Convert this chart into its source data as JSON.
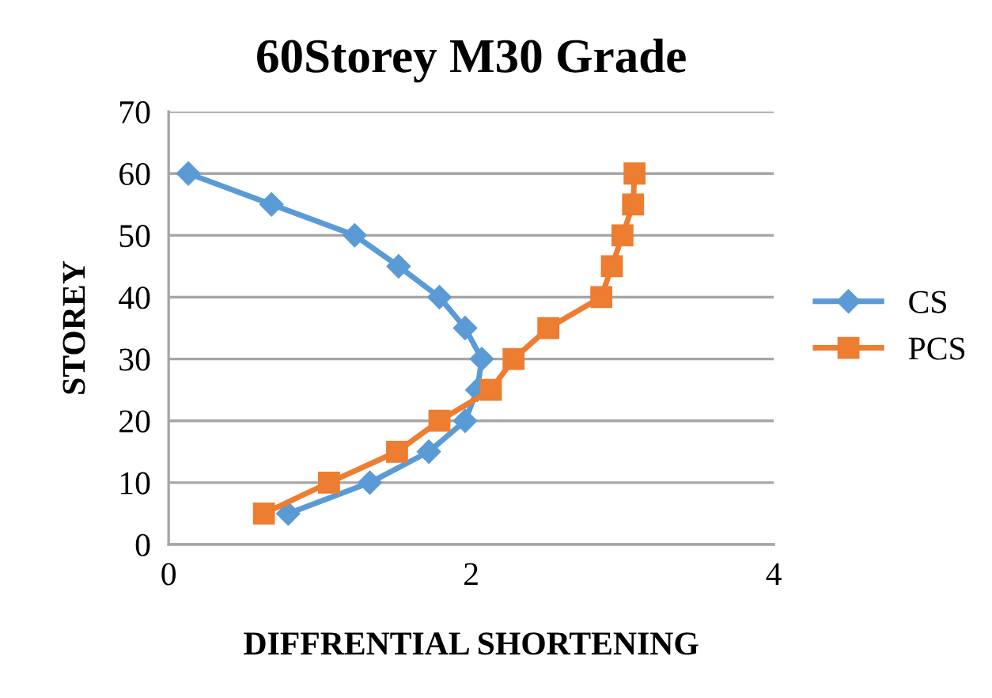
{
  "chart_data": {
    "type": "line",
    "title": "60Storey M30 Grade",
    "xlabel": "DIFFRENTIAL SHORTENING",
    "ylabel": "STOREY",
    "xlim": [
      0,
      4
    ],
    "xticks": [
      0,
      2,
      4
    ],
    "ylim": [
      0,
      70
    ],
    "yticks": [
      0,
      10,
      20,
      30,
      40,
      50,
      60,
      70
    ],
    "grid": "y",
    "legend": "right",
    "series": [
      {
        "name": "CS",
        "color": "#5b9bd5",
        "marker": "diamond",
        "x": [
          0.13,
          0.68,
          1.23,
          1.52,
          1.79,
          1.96,
          2.07,
          2.04,
          1.96,
          1.72,
          1.33,
          0.79
        ],
        "values": [
          60,
          55,
          50,
          45,
          40,
          35,
          30,
          25,
          20,
          15,
          10,
          5
        ]
      },
      {
        "name": "PCS",
        "color": "#ed7d31",
        "marker": "square",
        "x": [
          3.08,
          3.07,
          3.0,
          2.93,
          2.86,
          2.51,
          2.28,
          2.13,
          1.79,
          1.51,
          1.06,
          0.63
        ],
        "values": [
          60,
          55,
          50,
          45,
          40,
          35,
          30,
          25,
          20,
          15,
          10,
          5
        ]
      }
    ]
  }
}
